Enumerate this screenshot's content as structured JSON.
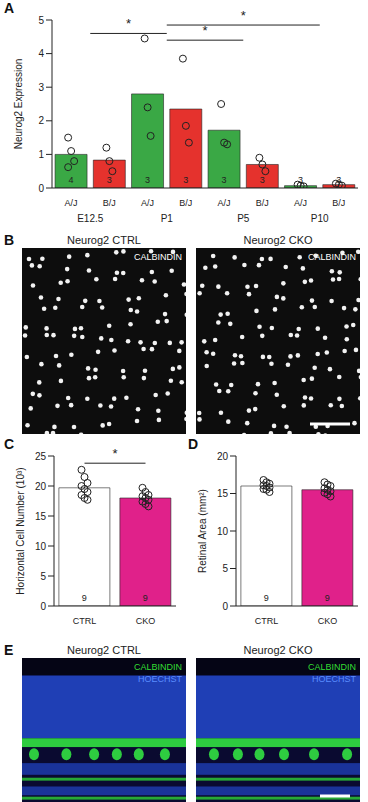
{
  "chart_data": [
    {
      "panel": "A",
      "type": "bar",
      "ylabel": "Neurog2 Expression",
      "categories": [
        "A/J",
        "B/J",
        "A/J",
        "B/J",
        "A/J",
        "B/J",
        "A/J",
        "B/J"
      ],
      "groups": [
        "E12.5",
        "P1",
        "P5",
        "P10"
      ],
      "values": [
        1.0,
        0.83,
        2.8,
        2.35,
        1.72,
        0.7,
        0.07,
        0.1
      ],
      "colors": [
        "#3aa845",
        "#e5322d",
        "#3aa845",
        "#e5322d",
        "#3aa845",
        "#e5322d",
        "#3aa845",
        "#e5322d"
      ],
      "n": [
        4,
        3,
        3,
        3,
        3,
        3,
        3,
        3
      ],
      "points": [
        [
          1.5,
          1.1,
          0.8,
          0.62
        ],
        [
          1.2,
          0.8,
          0.5
        ],
        [
          4.45,
          2.4,
          1.55
        ],
        [
          3.85,
          1.85,
          1.35
        ],
        [
          2.5,
          1.35,
          1.3
        ],
        [
          0.9,
          0.7,
          0.5
        ],
        [
          0.1,
          0.07,
          0.05
        ],
        [
          0.13,
          0.1,
          0.07
        ]
      ],
      "ylim": [
        0,
        5
      ],
      "yticks": [
        0,
        1,
        2,
        3,
        4,
        5
      ],
      "significance": [
        {
          "from": "E12.5",
          "to": "P1",
          "y": 4.6,
          "label": "*"
        },
        {
          "from": "P1",
          "to": "P5",
          "y": 4.4,
          "label": "*"
        },
        {
          "from": "P1",
          "to": "P10",
          "y": 4.85,
          "label": "*"
        }
      ]
    },
    {
      "panel": "C",
      "type": "bar",
      "ylabel": "Horizontal Cell Number (10³)",
      "categories": [
        "CTRL",
        "CKO"
      ],
      "values": [
        19.7,
        18.0
      ],
      "colors": [
        "#ffffff",
        "#e0218a"
      ],
      "n": [
        9,
        9
      ],
      "points": [
        [
          22.7,
          21.5,
          20.5,
          20.0,
          19.5,
          19.0,
          18.5,
          18.0,
          17.7
        ],
        [
          19.7,
          19.0,
          18.5,
          18.3,
          18.0,
          17.7,
          17.4,
          17.0,
          16.6
        ]
      ],
      "ylim": [
        0,
        25
      ],
      "yticks": [
        0,
        5,
        10,
        15,
        20,
        25
      ],
      "significance": [
        {
          "from": "CTRL",
          "to": "CKO",
          "y": 23.8,
          "label": "*"
        }
      ]
    },
    {
      "panel": "D",
      "type": "bar",
      "ylabel": "Retinal Area (mm²)",
      "categories": [
        "CTRL",
        "CKO"
      ],
      "values": [
        16.0,
        15.5
      ],
      "colors": [
        "#ffffff",
        "#e0218a"
      ],
      "n": [
        9,
        9
      ],
      "points": [
        [
          16.8,
          16.5,
          16.3,
          16.1,
          16.0,
          15.8,
          15.6,
          15.5,
          15.2
        ],
        [
          16.5,
          16.2,
          16.0,
          15.7,
          15.5,
          15.3,
          15.1,
          14.9,
          14.6
        ]
      ],
      "ylim": [
        0,
        20
      ],
      "yticks": [
        0,
        5,
        10,
        15,
        20
      ]
    }
  ],
  "image_panels": [
    {
      "panel": "B",
      "images": [
        {
          "title": "Neurog2 CTRL",
          "stains": [
            {
              "text": "CALBINDIN",
              "color": "#ffffff"
            }
          ]
        },
        {
          "title": "Neurog2 CKO",
          "stains": [
            {
              "text": "CALBINDIN",
              "color": "#ffffff"
            }
          ]
        }
      ]
    },
    {
      "panel": "E",
      "images": [
        {
          "title": "Neurog2 CTRL",
          "stains": [
            {
              "text": "CALBINDIN",
              "color": "#33dd33"
            },
            {
              "text": "HOECHST",
              "color": "#5a8cff"
            }
          ]
        },
        {
          "title": "Neurog2 CKO",
          "stains": [
            {
              "text": "CALBINDIN",
              "color": "#33dd33"
            },
            {
              "text": "HOECHST",
              "color": "#5a8cff"
            }
          ]
        }
      ]
    }
  ]
}
